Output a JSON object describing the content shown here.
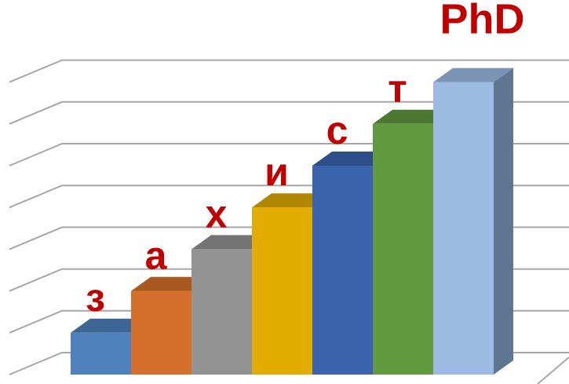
{
  "chart_data": {
    "type": "bar",
    "style": "3d-column",
    "categories": [
      "з",
      "а",
      "х",
      "и",
      "с",
      "т",
      "PhD"
    ],
    "values": [
      1,
      2,
      3,
      4,
      5,
      6,
      7
    ],
    "ylim": [
      0,
      8
    ],
    "grid": true,
    "colors": {
      "front": [
        "#4f81bd",
        "#d4702c",
        "#939393",
        "#e2ac00",
        "#3a63ad",
        "#629b3f",
        "#9dbbe2"
      ],
      "top": [
        "#3d6595",
        "#a9581f",
        "#747474",
        "#b28700",
        "#2d4e89",
        "#4c7831",
        "#7c94b4"
      ],
      "side": [
        "#38597f",
        "#944d1b",
        "#646464",
        "#9c7600",
        "#263f72",
        "#3f6528",
        "#5f7691"
      ],
      "label": "#c00000",
      "grid": "#a6a6a6"
    }
  }
}
